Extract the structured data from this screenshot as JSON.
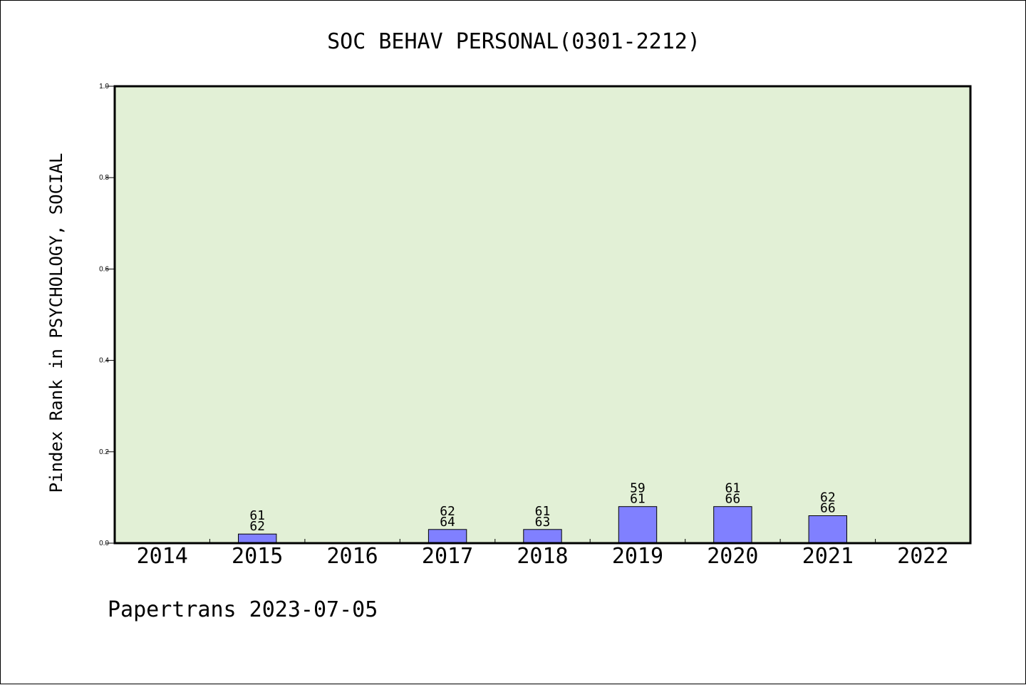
{
  "chart_data": {
    "type": "bar",
    "title": "SOC BEHAV PERSONAL(0301-2212)",
    "ylabel": "Pindex Rank in PSYCHOLOGY, SOCIAL",
    "xlabel": "",
    "ylim": [
      0,
      1.0
    ],
    "yticks": [
      "0.0",
      "0.2",
      "0.4",
      "0.6",
      "0.8",
      "1.0"
    ],
    "categories": [
      "2014",
      "2015",
      "2016",
      "2017",
      "2018",
      "2019",
      "2020",
      "2021",
      "2022"
    ],
    "values": [
      0,
      0.02,
      0,
      0.03,
      0.03,
      0.08,
      0.08,
      0.06,
      0
    ],
    "labels_top": [
      "",
      "61",
      "",
      "62",
      "61",
      "59",
      "61",
      "62",
      ""
    ],
    "labels_bottom": [
      "",
      "62",
      "",
      "64",
      "63",
      "61",
      "66",
      "66",
      ""
    ],
    "grid": false,
    "colors": {
      "plot_background": "#e2f0d6",
      "bar_fill": "#8080ff",
      "bar_stroke": "#000000"
    }
  },
  "footer": "Papertrans 2023-07-05"
}
